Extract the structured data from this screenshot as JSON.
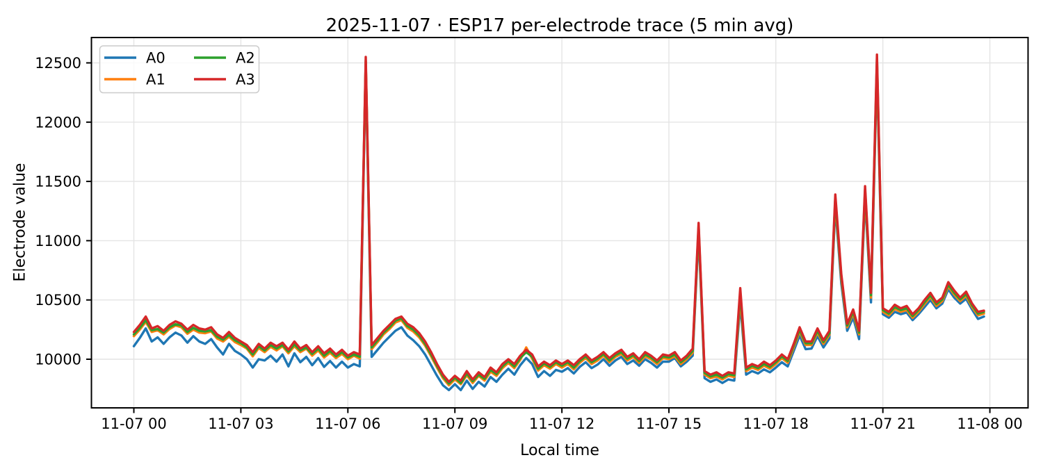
{
  "chart_data": {
    "type": "line",
    "title": "2025-11-07 · ESP17 per-electrode trace (5 min avg)",
    "xlabel": "Local time",
    "ylabel": "Electrode value",
    "x_start": "2025-11-07 00:00",
    "x_step_minutes": 10,
    "xlim_hours": [
      -1.19,
      25.07
    ],
    "ylim": [
      9590,
      12714
    ],
    "x_ticks_hours": [
      0,
      3,
      6,
      9,
      12,
      15,
      18,
      21,
      24
    ],
    "x_tick_labels": [
      "11-07 00",
      "11-07 03",
      "11-07 06",
      "11-07 09",
      "11-07 12",
      "11-07 15",
      "11-07 18",
      "11-07 21",
      "11-08 00"
    ],
    "y_ticks": [
      10000,
      10500,
      11000,
      11500,
      12000,
      12500
    ],
    "grid": true,
    "legend": {
      "position": "upper-left",
      "columns": 2,
      "entries": [
        "A0",
        "A1",
        "A2",
        "A3"
      ]
    },
    "series": [
      {
        "name": "A0",
        "color": "#1f77b4",
        "values": [
          10110,
          10180,
          10260,
          10150,
          10185,
          10130,
          10185,
          10225,
          10200,
          10140,
          10195,
          10150,
          10130,
          10170,
          10100,
          10040,
          10130,
          10070,
          10040,
          10000,
          9930,
          10000,
          9990,
          10030,
          9980,
          10040,
          9940,
          10050,
          9975,
          10020,
          9950,
          10010,
          9935,
          9985,
          9930,
          9980,
          9930,
          9960,
          9940,
          12470,
          10020,
          10080,
          10140,
          10190,
          10240,
          10270,
          10200,
          10160,
          10110,
          10040,
          9950,
          9860,
          9780,
          9740,
          9790,
          9740,
          9820,
          9750,
          9810,
          9770,
          9850,
          9810,
          9870,
          9920,
          9870,
          9950,
          10010,
          9960,
          9850,
          9900,
          9860,
          9910,
          9895,
          9925,
          9880,
          9935,
          9975,
          9925,
          9955,
          10000,
          9945,
          9990,
          10020,
          9960,
          9990,
          9945,
          10000,
          9970,
          9930,
          9980,
          9980,
          10010,
          9940,
          9980,
          10030,
          11060,
          9840,
          9810,
          9830,
          9800,
          9830,
          9820,
          10470,
          9870,
          9900,
          9880,
          9915,
          9890,
          9930,
          9975,
          9940,
          10070,
          10200,
          10085,
          10090,
          10195,
          10100,
          10175,
          11290,
          10640,
          10240,
          10350,
          10170,
          11360,
          10480,
          12440,
          10380,
          10350,
          10400,
          10380,
          10395,
          10330,
          10380,
          10440,
          10500,
          10430,
          10470,
          10590,
          10520,
          10470,
          10510,
          10420,
          10340,
          10360
        ]
      },
      {
        "name": "A1",
        "color": "#ff7f0e",
        "values": [
          10195,
          10250,
          10315,
          10230,
          10245,
          10210,
          10255,
          10285,
          10270,
          10215,
          10250,
          10225,
          10220,
          10235,
          10175,
          10150,
          10190,
          10145,
          10120,
          10090,
          10025,
          10095,
          10060,
          10105,
          10075,
          10110,
          10050,
          10110,
          10060,
          10090,
          10030,
          10075,
          10015,
          10055,
          10010,
          10045,
          10000,
          10030,
          10005,
          12510,
          10085,
          10145,
          10210,
          10255,
          10310,
          10330,
          10265,
          10235,
          10185,
          10115,
          10025,
          9930,
          9840,
          9780,
          9830,
          9790,
          9865,
          9800,
          9860,
          9820,
          9895,
          9860,
          9925,
          9970,
          9925,
          9995,
          10100,
          10005,
          9905,
          9950,
          9920,
          9960,
          9930,
          9960,
          9915,
          9970,
          10010,
          9960,
          9990,
          10030,
          9975,
          10020,
          10045,
          9990,
          10020,
          9970,
          10025,
          10000,
          9960,
          10010,
          10000,
          10025,
          9960,
          10000,
          10055,
          11100,
          9870,
          9840,
          9855,
          9830,
          9860,
          9850,
          10520,
          9900,
          9930,
          9910,
          9945,
          9920,
          9960,
          10010,
          9970,
          10100,
          10235,
          10120,
          10120,
          10225,
          10130,
          10205,
          11330,
          10680,
          10270,
          10385,
          10210,
          11400,
          10520,
          12490,
          10400,
          10370,
          10425,
          10400,
          10415,
          10350,
          10400,
          10465,
          10525,
          10450,
          10490,
          10615,
          10545,
          10490,
          10535,
          10440,
          10370,
          10385
        ]
      },
      {
        "name": "A2",
        "color": "#2ca02c",
        "values": [
          10210,
          10265,
          10330,
          10245,
          10255,
          10225,
          10270,
          10295,
          10285,
          10230,
          10265,
          10240,
          10235,
          10245,
          10190,
          10165,
          10205,
          10160,
          10135,
          10100,
          10040,
          10110,
          10075,
          10120,
          10090,
          10120,
          10065,
          10125,
          10075,
          10100,
          10045,
          10090,
          10030,
          10070,
          10025,
          10060,
          10015,
          10040,
          10020,
          12520,
          10100,
          10160,
          10225,
          10270,
          10325,
          10345,
          10280,
          10250,
          10200,
          10130,
          10040,
          9945,
          9855,
          9795,
          9845,
          9800,
          9880,
          9815,
          9870,
          9835,
          9910,
          9875,
          9940,
          9985,
          9940,
          10010,
          10060,
          10020,
          9920,
          9965,
          9935,
          9975,
          9945,
          9975,
          9930,
          9985,
          10025,
          9975,
          10005,
          10045,
          9990,
          10035,
          10060,
          10005,
          10035,
          9985,
          10040,
          10015,
          9975,
          10025,
          10015,
          10040,
          9975,
          10015,
          10070,
          11120,
          9885,
          9855,
          9870,
          9845,
          9875,
          9865,
          10560,
          9915,
          9945,
          9925,
          9960,
          9935,
          9975,
          10025,
          9985,
          10115,
          10250,
          10135,
          10135,
          10240,
          10145,
          10220,
          11360,
          10700,
          10285,
          10400,
          10225,
          11430,
          10540,
          12530,
          10415,
          10385,
          10440,
          10415,
          10430,
          10365,
          10415,
          10480,
          10540,
          10465,
          10505,
          10630,
          10560,
          10505,
          10550,
          10455,
          10385,
          10400
        ]
      },
      {
        "name": "A3",
        "color": "#d62728",
        "values": [
          10230,
          10290,
          10360,
          10260,
          10280,
          10240,
          10290,
          10320,
          10300,
          10250,
          10290,
          10260,
          10250,
          10270,
          10210,
          10180,
          10230,
          10180,
          10150,
          10120,
          10060,
          10130,
          10090,
          10140,
          10110,
          10140,
          10080,
          10150,
          10090,
          10120,
          10060,
          10110,
          10050,
          10090,
          10040,
          10080,
          10030,
          10060,
          10040,
          12550,
          10120,
          10180,
          10240,
          10290,
          10340,
          10360,
          10300,
          10270,
          10220,
          10150,
          10060,
          9960,
          9870,
          9810,
          9860,
          9820,
          9900,
          9830,
          9890,
          9850,
          9930,
          9890,
          9960,
          10000,
          9960,
          10030,
          10080,
          10040,
          9940,
          9980,
          9950,
          9990,
          9960,
          9990,
          9950,
          10000,
          10040,
          9990,
          10020,
          10060,
          10010,
          10050,
          10080,
          10020,
          10050,
          10000,
          10060,
          10030,
          9990,
          10040,
          10030,
          10060,
          9990,
          10030,
          10090,
          11150,
          9900,
          9870,
          9890,
          9860,
          9890,
          9880,
          10600,
          9930,
          9960,
          9940,
          9980,
          9950,
          9990,
          10040,
          10000,
          10130,
          10270,
          10150,
          10150,
          10260,
          10160,
          10240,
          11390,
          10720,
          10300,
          10420,
          10240,
          11460,
          10560,
          12570,
          10430,
          10400,
          10460,
          10430,
          10450,
          10380,
          10430,
          10500,
          10560,
          10480,
          10520,
          10650,
          10580,
          10520,
          10570,
          10470,
          10400,
          10410
        ]
      }
    ],
    "style": {
      "grid_color": "#e4e4e4",
      "spine_color": "#000000",
      "legend_edge_color": "#cccccc",
      "background": "#ffffff"
    }
  }
}
